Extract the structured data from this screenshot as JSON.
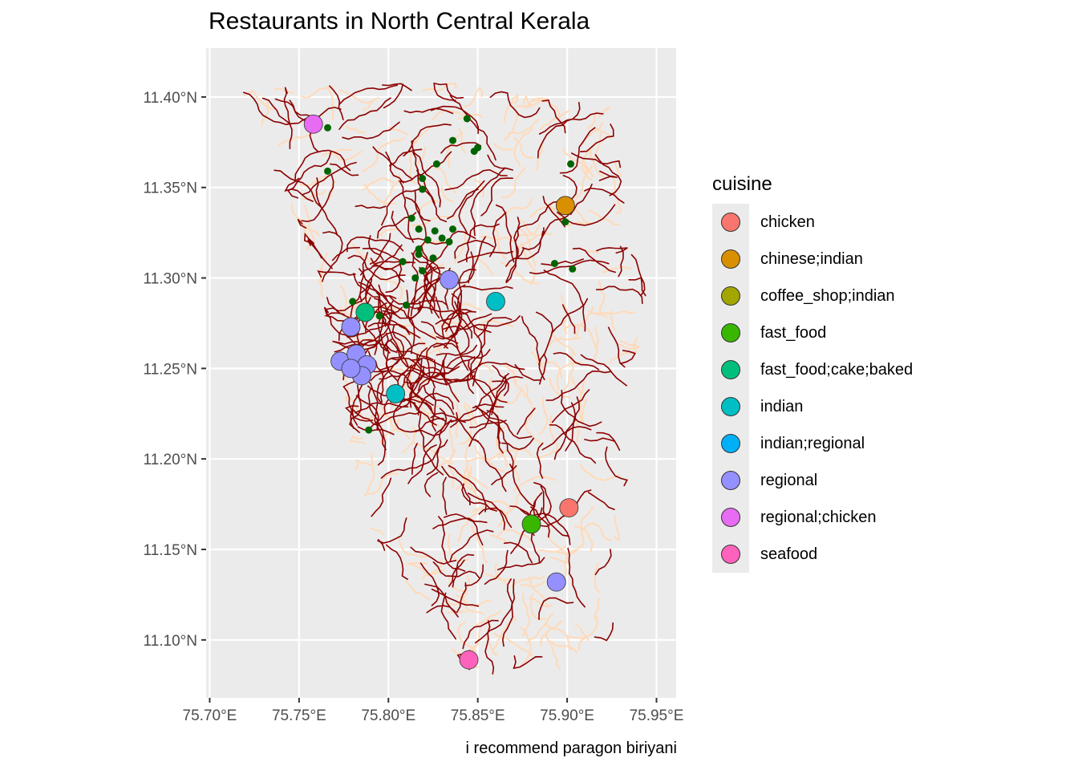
{
  "title": "Restaurants in North Central Kerala",
  "caption": "i recommend paragon biriyani",
  "map_data": {
    "lon_range": [
      75.698,
      75.961
    ],
    "lat_range": [
      11.068,
      11.427
    ],
    "x_ticks": [
      {
        "value": 75.7,
        "label": "75.70°E"
      },
      {
        "value": 75.75,
        "label": "75.75°E"
      },
      {
        "value": 75.8,
        "label": "75.80°E"
      },
      {
        "value": 75.85,
        "label": "75.85°E"
      },
      {
        "value": 75.9,
        "label": "75.90°E"
      },
      {
        "value": 75.95,
        "label": "75.95°E"
      }
    ],
    "y_ticks": [
      {
        "value": 11.1,
        "label": "11.10°N"
      },
      {
        "value": 11.15,
        "label": "11.15°N"
      },
      {
        "value": 11.2,
        "label": "11.20°N"
      },
      {
        "value": 11.25,
        "label": "11.25°N"
      },
      {
        "value": 11.3,
        "label": "11.30°N"
      },
      {
        "value": 11.35,
        "label": "11.35°N"
      },
      {
        "value": 11.4,
        "label": "11.40°N"
      }
    ],
    "colors": {
      "panel": "#ebebeb",
      "grid": "#ffffff",
      "major_roads": "#8b0000",
      "minor_roads": "#ffdab9",
      "small_points": "#006400",
      "point_outline": "#333333"
    },
    "region_outline": [
      [
        75.712,
        11.405
      ],
      [
        75.775,
        11.408
      ],
      [
        75.835,
        11.408
      ],
      [
        75.88,
        11.4
      ],
      [
        75.925,
        11.395
      ],
      [
        75.93,
        11.36
      ],
      [
        75.935,
        11.32
      ],
      [
        75.95,
        11.283
      ],
      [
        75.935,
        11.25
      ],
      [
        75.935,
        11.2
      ],
      [
        75.93,
        11.15
      ],
      [
        75.925,
        11.1
      ],
      [
        75.905,
        11.085
      ],
      [
        75.85,
        11.08
      ],
      [
        75.84,
        11.085
      ],
      [
        75.825,
        11.11
      ],
      [
        75.79,
        11.16
      ],
      [
        75.78,
        11.2
      ],
      [
        75.773,
        11.245
      ],
      [
        75.76,
        11.3
      ],
      [
        75.745,
        11.34
      ],
      [
        75.725,
        11.38
      ],
      [
        75.712,
        11.405
      ]
    ],
    "small_points": [
      [
        75.766,
        11.383
      ],
      [
        75.766,
        11.359
      ],
      [
        75.78,
        11.287
      ],
      [
        75.795,
        11.279
      ],
      [
        75.81,
        11.285
      ],
      [
        75.789,
        11.216
      ],
      [
        75.844,
        11.388
      ],
      [
        75.836,
        11.376
      ],
      [
        75.848,
        11.37
      ],
      [
        75.85,
        11.372
      ],
      [
        75.827,
        11.363
      ],
      [
        75.819,
        11.355
      ],
      [
        75.819,
        11.349
      ],
      [
        75.813,
        11.333
      ],
      [
        75.817,
        11.327
      ],
      [
        75.822,
        11.321
      ],
      [
        75.826,
        11.326
      ],
      [
        75.83,
        11.322
      ],
      [
        75.834,
        11.32
      ],
      [
        75.836,
        11.327
      ],
      [
        75.817,
        11.316
      ],
      [
        75.817,
        11.313
      ],
      [
        75.825,
        11.311
      ],
      [
        75.808,
        11.309
      ],
      [
        75.815,
        11.3
      ],
      [
        75.819,
        11.304
      ],
      [
        75.899,
        11.331
      ],
      [
        75.902,
        11.363
      ],
      [
        75.893,
        11.308
      ],
      [
        75.903,
        11.305
      ]
    ],
    "restaurants": [
      {
        "cuisine": "regional;chicken",
        "lon": 75.758,
        "lat": 11.385
      },
      {
        "cuisine": "chinese;indian",
        "lon": 75.899,
        "lat": 11.34
      },
      {
        "cuisine": "regional",
        "lon": 75.834,
        "lat": 11.299
      },
      {
        "cuisine": "indian",
        "lon": 75.86,
        "lat": 11.287
      },
      {
        "cuisine": "fast_food;cake;baked",
        "lon": 75.787,
        "lat": 11.281
      },
      {
        "cuisine": "regional",
        "lon": 75.779,
        "lat": 11.273
      },
      {
        "cuisine": "coffee_shop;indian",
        "lon": 75.785,
        "lat": 11.246
      },
      {
        "cuisine": "regional",
        "lon": 75.773,
        "lat": 11.254
      },
      {
        "cuisine": "regional",
        "lon": 75.782,
        "lat": 11.258
      },
      {
        "cuisine": "regional",
        "lon": 75.788,
        "lat": 11.252
      },
      {
        "cuisine": "regional",
        "lon": 75.785,
        "lat": 11.246
      },
      {
        "cuisine": "regional",
        "lon": 75.779,
        "lat": 11.25
      },
      {
        "cuisine": "indian",
        "lon": 75.804,
        "lat": 11.236
      },
      {
        "cuisine": "chicken",
        "lon": 75.901,
        "lat": 11.173
      },
      {
        "cuisine": "fast_food",
        "lon": 75.88,
        "lat": 11.164
      },
      {
        "cuisine": "regional",
        "lon": 75.894,
        "lat": 11.132
      },
      {
        "cuisine": "seafood",
        "lon": 75.845,
        "lat": 11.089
      }
    ]
  },
  "legend": {
    "title": "cuisine",
    "items": [
      {
        "label": "chicken",
        "color": "#F8766D"
      },
      {
        "label": "chinese;indian",
        "color": "#D89000"
      },
      {
        "label": "coffee_shop;indian",
        "color": "#A3A500"
      },
      {
        "label": "fast_food",
        "color": "#39B600"
      },
      {
        "label": "fast_food;cake;baked",
        "color": "#00BF7D"
      },
      {
        "label": "indian",
        "color": "#00BFC4"
      },
      {
        "label": "indian;regional",
        "color": "#00B0F6"
      },
      {
        "label": "regional",
        "color": "#9590FF"
      },
      {
        "label": "regional;chicken",
        "color": "#E76BF3"
      },
      {
        "label": "seafood",
        "color": "#FF62BC"
      }
    ]
  }
}
